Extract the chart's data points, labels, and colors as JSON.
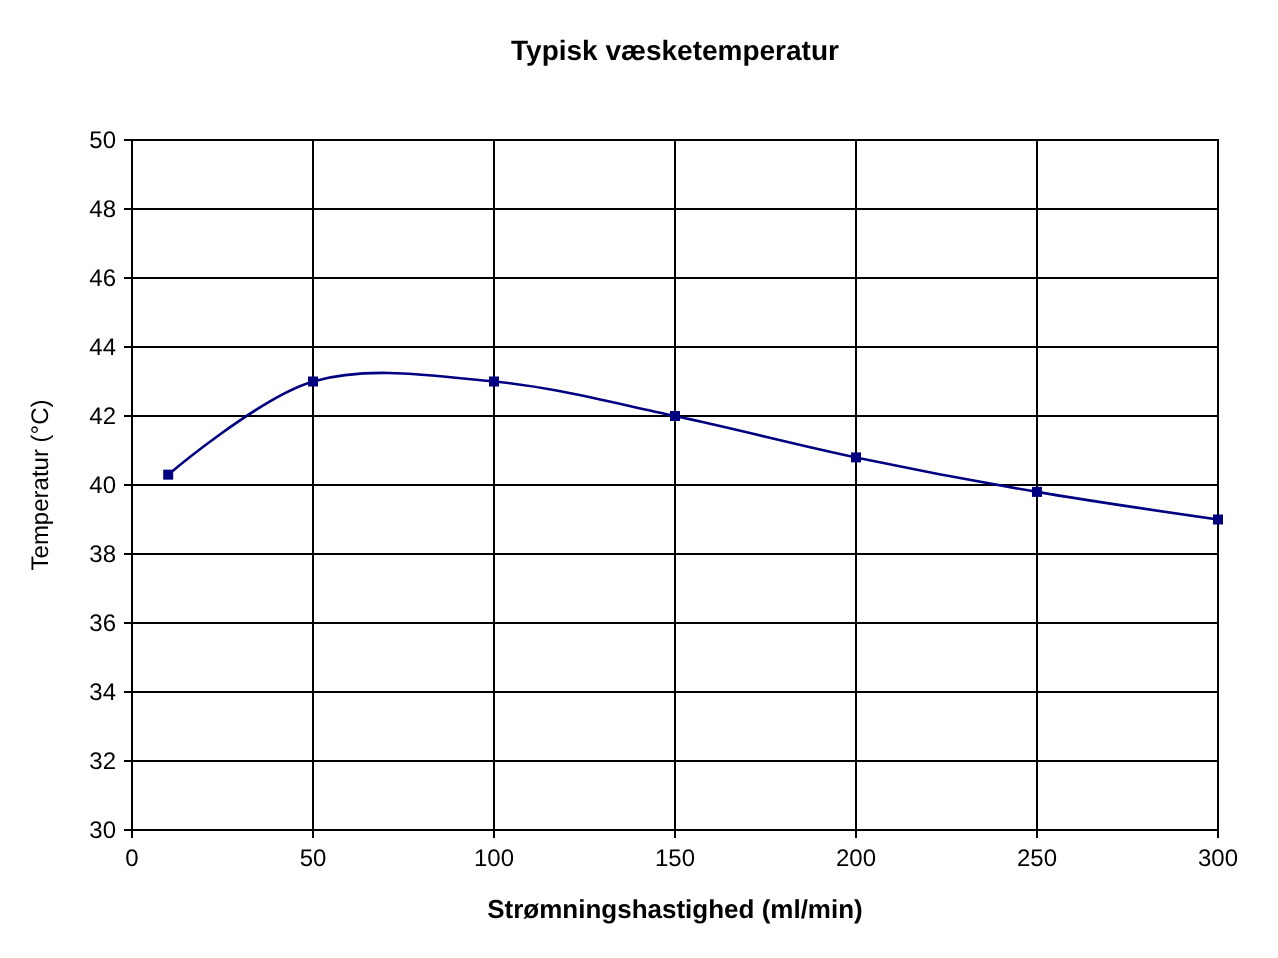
{
  "chart_data": {
    "type": "line",
    "title": "Typisk væsketemperatur",
    "xlabel": "Strømningshastighed (ml/min)",
    "ylabel": "Temperatur (°C)",
    "x": [
      10,
      50,
      100,
      150,
      200,
      250,
      300
    ],
    "series": [
      {
        "color": "#000080",
        "values": [
          40.3,
          43.0,
          43.0,
          42.0,
          40.8,
          39.8,
          39.0
        ]
      }
    ],
    "xlim": [
      0,
      300
    ],
    "xticks": [
      0,
      50,
      100,
      150,
      200,
      250,
      300
    ],
    "ylim": [
      30,
      50
    ],
    "yticks": [
      30,
      32,
      34,
      36,
      38,
      40,
      42,
      44,
      46,
      48,
      50
    ],
    "grid": true,
    "marker": "square",
    "line_style": "solid"
  }
}
